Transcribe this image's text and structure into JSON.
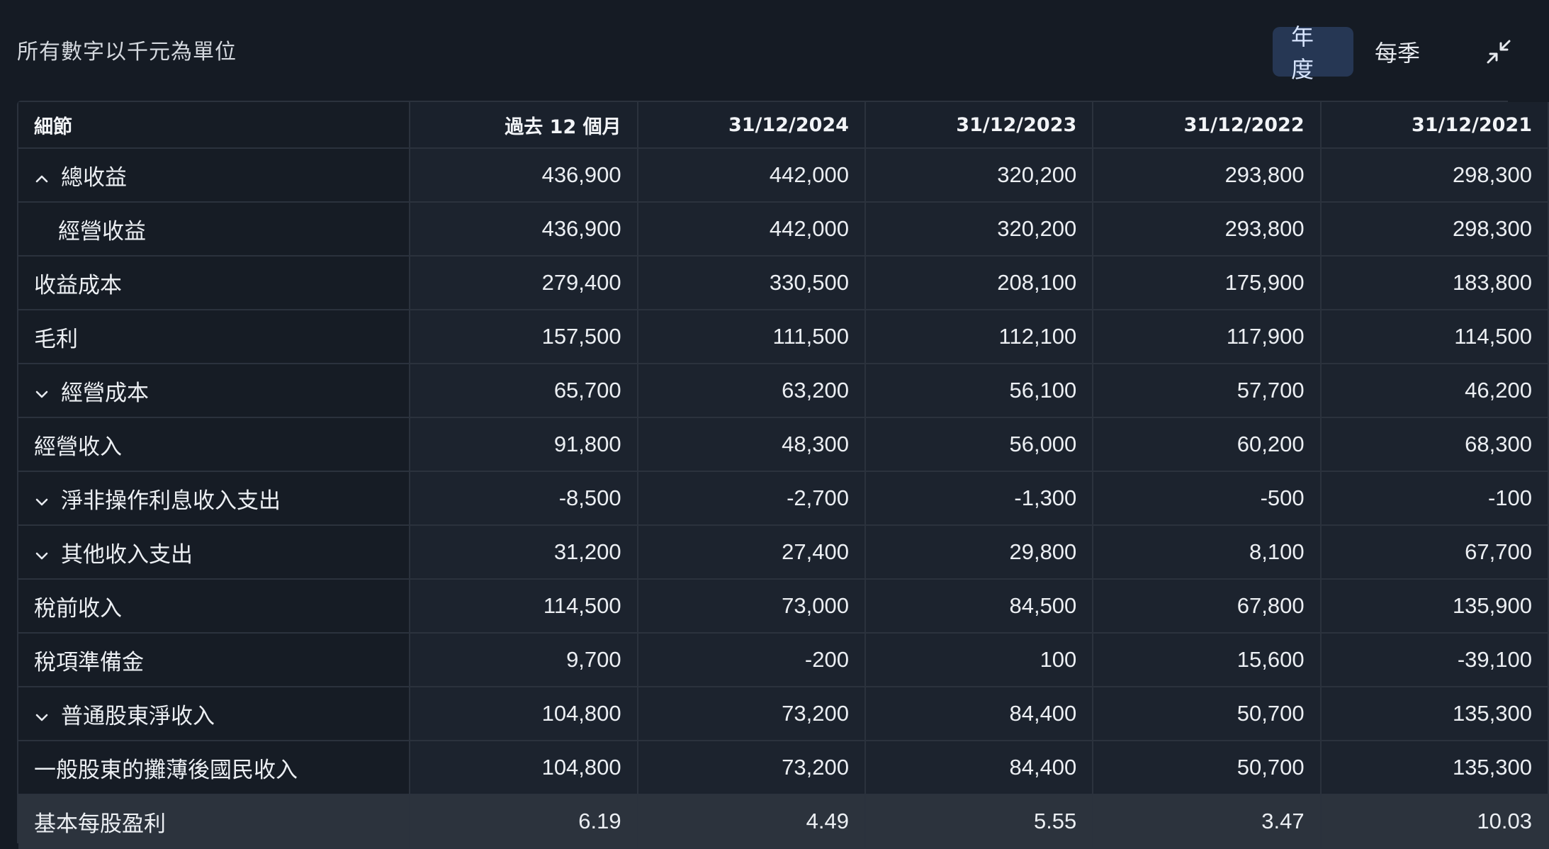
{
  "header": {
    "unit_note": "所有數字以千元為單位",
    "toggle": {
      "annual": "年度",
      "quarterly": "每季"
    }
  },
  "table": {
    "columns": [
      "細節",
      "過去 12 個月",
      "31/12/2024",
      "31/12/2023",
      "31/12/2022",
      "31/12/2021"
    ],
    "rows": [
      {
        "label": "總收益",
        "icon": "chevron-up-icon",
        "values": [
          "436,900",
          "442,000",
          "320,200",
          "293,800",
          "298,300"
        ]
      },
      {
        "label": "經營收益",
        "indent": true,
        "values": [
          "436,900",
          "442,000",
          "320,200",
          "293,800",
          "298,300"
        ]
      },
      {
        "label": "收益成本",
        "values": [
          "279,400",
          "330,500",
          "208,100",
          "175,900",
          "183,800"
        ]
      },
      {
        "label": "毛利",
        "values": [
          "157,500",
          "111,500",
          "112,100",
          "117,900",
          "114,500"
        ]
      },
      {
        "label": "經營成本",
        "icon": "chevron-down-icon",
        "values": [
          "65,700",
          "63,200",
          "56,100",
          "57,700",
          "46,200"
        ]
      },
      {
        "label": "經營收入",
        "values": [
          "91,800",
          "48,300",
          "56,000",
          "60,200",
          "68,300"
        ]
      },
      {
        "label": "淨非操作利息收入支出",
        "icon": "chevron-down-icon",
        "values": [
          "-8,500",
          "-2,700",
          "-1,300",
          "-500",
          "-100"
        ]
      },
      {
        "label": "其他收入支出",
        "icon": "chevron-down-icon",
        "values": [
          "31,200",
          "27,400",
          "29,800",
          "8,100",
          "67,700"
        ]
      },
      {
        "label": "稅前收入",
        "values": [
          "114,500",
          "73,000",
          "84,500",
          "67,800",
          "135,900"
        ]
      },
      {
        "label": "稅項準備金",
        "values": [
          "9,700",
          "-200",
          "100",
          "15,600",
          "-39,100"
        ]
      },
      {
        "label": "普通股東淨收入",
        "icon": "chevron-down-icon",
        "values": [
          "104,800",
          "73,200",
          "84,400",
          "50,700",
          "135,300"
        ]
      },
      {
        "label": "一般股東的攤薄後國民收入",
        "values": [
          "104,800",
          "73,200",
          "84,400",
          "50,700",
          "135,300"
        ]
      },
      {
        "label": "基本每股盈利",
        "highlight": true,
        "values": [
          "6.19",
          "4.49",
          "5.55",
          "3.47",
          "10.03"
        ]
      }
    ]
  }
}
